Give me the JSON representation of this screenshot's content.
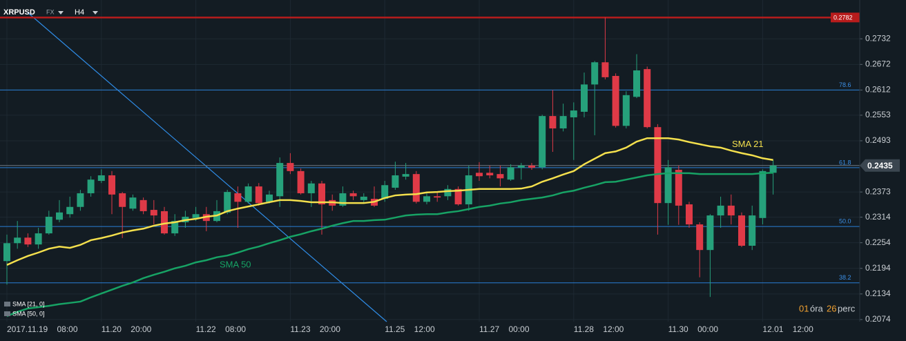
{
  "header": {
    "symbol": "XRPUSD",
    "market": "FX",
    "timeframe": "H4"
  },
  "chart_data": {
    "type": "candlestick",
    "categories": [
      "2017.11.19 08:00",
      null,
      null,
      null,
      null,
      null,
      null,
      null,
      null,
      "11.20 20:00",
      null,
      null,
      null,
      null,
      null,
      null,
      null,
      null,
      "11.22 08:00",
      null,
      null,
      null,
      null,
      null,
      null,
      null,
      null,
      "11.23 20:00",
      null,
      null,
      null,
      null,
      null,
      null,
      null,
      null,
      "11.25 12:00",
      null,
      null,
      null,
      null,
      null,
      null,
      null,
      null,
      "11.27 00:00",
      null,
      null,
      null,
      null,
      null,
      null,
      null,
      null,
      "11.28 12:00",
      null,
      null,
      null,
      null,
      null,
      null,
      null,
      null,
      "11.30 00:00",
      null,
      null,
      null,
      null,
      null,
      null,
      null,
      null,
      "12.01 12:00",
      null
    ],
    "open": [
      0.2211,
      0.2253,
      0.2266,
      0.225,
      0.2276,
      0.2308,
      0.2321,
      0.2338,
      0.237,
      0.2399,
      0.2412,
      0.237,
      0.2334,
      0.2354,
      0.2331,
      0.2328,
      0.2276,
      0.2302,
      0.2312,
      0.2321,
      0.2305,
      0.2325,
      0.237,
      0.235,
      0.2386,
      0.235,
      0.2363,
      0.2441,
      0.2422,
      0.237,
      0.2393,
      0.2354,
      0.2341,
      0.237,
      0.2354,
      0.2357,
      0.2357,
      0.2383,
      0.2409,
      0.2415,
      0.235,
      0.2363,
      0.2363,
      0.238,
      0.2344,
      0.2418,
      0.2418,
      0.2415,
      0.2402,
      0.243,
      0.2435,
      0.2431,
      0.2551,
      0.2522,
      0.2548,
      0.2561,
      0.2625,
      0.2677,
      0.2645,
      0.2528,
      0.2596,
      0.2661,
      0.2525,
      0.2347,
      0.2425,
      0.2344,
      0.2297,
      0.2237,
      0.2318,
      0.2341,
      0.2318,
      0.2247,
      0.2312,
      0.2418
    ],
    "high": [
      0.2273,
      0.2305,
      0.2276,
      0.2289,
      0.2329,
      0.2354,
      0.2362,
      0.2378,
      0.241,
      0.2426,
      0.2422,
      0.2373,
      0.2367,
      0.236,
      0.2354,
      0.2338,
      0.2321,
      0.2329,
      0.2338,
      0.2338,
      0.2354,
      0.2378,
      0.2386,
      0.2393,
      0.2394,
      0.2376,
      0.2454,
      0.2464,
      0.2428,
      0.2399,
      0.2399,
      0.2367,
      0.2386,
      0.2376,
      0.237,
      0.2386,
      0.2399,
      0.2444,
      0.2441,
      0.2422,
      0.237,
      0.2373,
      0.2389,
      0.2386,
      0.2435,
      0.2443,
      0.2435,
      0.2435,
      0.2438,
      0.2441,
      0.2441,
      0.2554,
      0.2612,
      0.258,
      0.2583,
      0.2653,
      0.268,
      0.2782,
      0.2651,
      0.2609,
      0.2696,
      0.2667,
      0.2532,
      0.2448,
      0.2435,
      0.235,
      0.2302,
      0.2321,
      0.2362,
      0.2367,
      0.2325,
      0.2341,
      0.2426,
      0.2448
    ],
    "low": [
      0.2156,
      0.224,
      0.2244,
      0.224,
      0.2273,
      0.2302,
      0.2313,
      0.2329,
      0.2362,
      0.2394,
      0.2321,
      0.2265,
      0.2329,
      0.2321,
      0.2297,
      0.2273,
      0.227,
      0.2289,
      0.2305,
      0.2281,
      0.2302,
      0.2321,
      0.2289,
      0.2346,
      0.2341,
      0.2346,
      0.2338,
      0.2415,
      0.2367,
      0.2338,
      0.2273,
      0.2329,
      0.2338,
      0.2354,
      0.2346,
      0.2338,
      0.235,
      0.2378,
      0.2402,
      0.2346,
      0.2344,
      0.235,
      0.2354,
      0.2341,
      0.2329,
      0.2399,
      0.2405,
      0.2386,
      0.2399,
      0.2402,
      0.2425,
      0.2426,
      0.2467,
      0.2515,
      0.2448,
      0.2548,
      0.2506,
      0.2637,
      0.2524,
      0.2522,
      0.2593,
      0.2522,
      0.2273,
      0.2296,
      0.2296,
      0.2289,
      0.2173,
      0.2127,
      0.2289,
      0.2297,
      0.2244,
      0.2237,
      0.2297,
      0.2367
    ],
    "close": [
      0.2253,
      0.2266,
      0.225,
      0.2276,
      0.2315,
      0.2325,
      0.2338,
      0.237,
      0.2402,
      0.2412,
      0.2367,
      0.2338,
      0.236,
      0.2328,
      0.2318,
      0.2276,
      0.2305,
      0.2315,
      0.2321,
      0.2305,
      0.2328,
      0.2373,
      0.235,
      0.2386,
      0.2347,
      0.2367,
      0.2441,
      0.2422,
      0.237,
      0.2393,
      0.2344,
      0.2341,
      0.237,
      0.2363,
      0.2362,
      0.2341,
      0.2389,
      0.2412,
      0.2415,
      0.235,
      0.2363,
      0.236,
      0.238,
      0.2344,
      0.2412,
      0.241,
      0.2412,
      0.2405,
      0.2431,
      0.2435,
      0.243,
      0.2551,
      0.2522,
      0.2551,
      0.2564,
      0.2625,
      0.2677,
      0.2642,
      0.2528,
      0.26,
      0.2658,
      0.2525,
      0.2347,
      0.2431,
      0.2341,
      0.2297,
      0.2237,
      0.2318,
      0.2341,
      0.2318,
      0.2247,
      0.2318,
      0.2422,
      0.2435
    ],
    "up_color": "#26a17b",
    "down_color": "#df3a47",
    "series": [
      {
        "name": "SMA 21",
        "color": "#f4e04d",
        "values": [
          0.2202,
          0.2213,
          0.2223,
          0.2231,
          0.224,
          0.2245,
          0.2242,
          0.2249,
          0.226,
          0.2265,
          0.2271,
          0.2278,
          0.2283,
          0.2287,
          0.2294,
          0.2299,
          0.2302,
          0.2307,
          0.231,
          0.2315,
          0.2318,
          0.2328,
          0.2334,
          0.2339,
          0.2344,
          0.2349,
          0.2354,
          0.2354,
          0.2352,
          0.2349,
          0.2349,
          0.2349,
          0.2347,
          0.2347,
          0.2347,
          0.235,
          0.2359,
          0.2365,
          0.2367,
          0.2368,
          0.2372,
          0.2373,
          0.2375,
          0.2376,
          0.2378,
          0.238,
          0.238,
          0.238,
          0.238,
          0.2381,
          0.2386,
          0.2397,
          0.2405,
          0.2414,
          0.2422,
          0.2438,
          0.2451,
          0.2464,
          0.2468,
          0.2477,
          0.2491,
          0.2499,
          0.2499,
          0.2499,
          0.2496,
          0.249,
          0.2485,
          0.248,
          0.2477,
          0.247,
          0.2464,
          0.2459,
          0.2452,
          0.2448
        ]
      },
      {
        "name": "SMA 50",
        "color": "#17a365",
        "values": [
          0.2082,
          0.2092,
          0.21,
          0.2103,
          0.2106,
          0.211,
          0.2113,
          0.2116,
          0.2126,
          0.2135,
          0.2144,
          0.2153,
          0.2161,
          0.2171,
          0.2179,
          0.2186,
          0.2194,
          0.22,
          0.2208,
          0.2213,
          0.222,
          0.2224,
          0.2231,
          0.2239,
          0.2245,
          0.2253,
          0.226,
          0.2268,
          0.2274,
          0.2281,
          0.2287,
          0.2294,
          0.23,
          0.2305,
          0.2305,
          0.2307,
          0.2308,
          0.2313,
          0.2318,
          0.232,
          0.2321,
          0.2321,
          0.2325,
          0.2328,
          0.2333,
          0.2338,
          0.2341,
          0.2346,
          0.2349,
          0.2354,
          0.2357,
          0.236,
          0.2365,
          0.2372,
          0.2376,
          0.2383,
          0.2389,
          0.2396,
          0.2397,
          0.2402,
          0.2407,
          0.2412,
          0.2415,
          0.2417,
          0.2417,
          0.2417,
          0.2415,
          0.2415,
          0.2415,
          0.2415,
          0.2415,
          0.2415,
          0.2417,
          0.2418
        ]
      }
    ],
    "ylim": [
      0.2069,
      0.2823
    ],
    "yticks": [
      0.2732,
      0.2672,
      0.2612,
      0.2553,
      0.2493,
      0.2373,
      0.2314,
      0.2254,
      0.2194,
      0.2134,
      0.2074
    ],
    "grid": true,
    "levels": [
      {
        "label": "78.6",
        "value": 0.2612
      },
      {
        "label": "61.8",
        "value": 0.243
      },
      {
        "label": "50.0",
        "value": 0.2292
      },
      {
        "label": "38.2",
        "value": 0.216
      }
    ],
    "resistance": 0.2782,
    "last_price": 0.2435
  },
  "indicators": [
    "SMA [21, 0]",
    "SMA [50, 0]"
  ],
  "countdown": {
    "hours": "01",
    "hours_unit": "óra",
    "minutes": "26",
    "minutes_unit": "perc"
  }
}
